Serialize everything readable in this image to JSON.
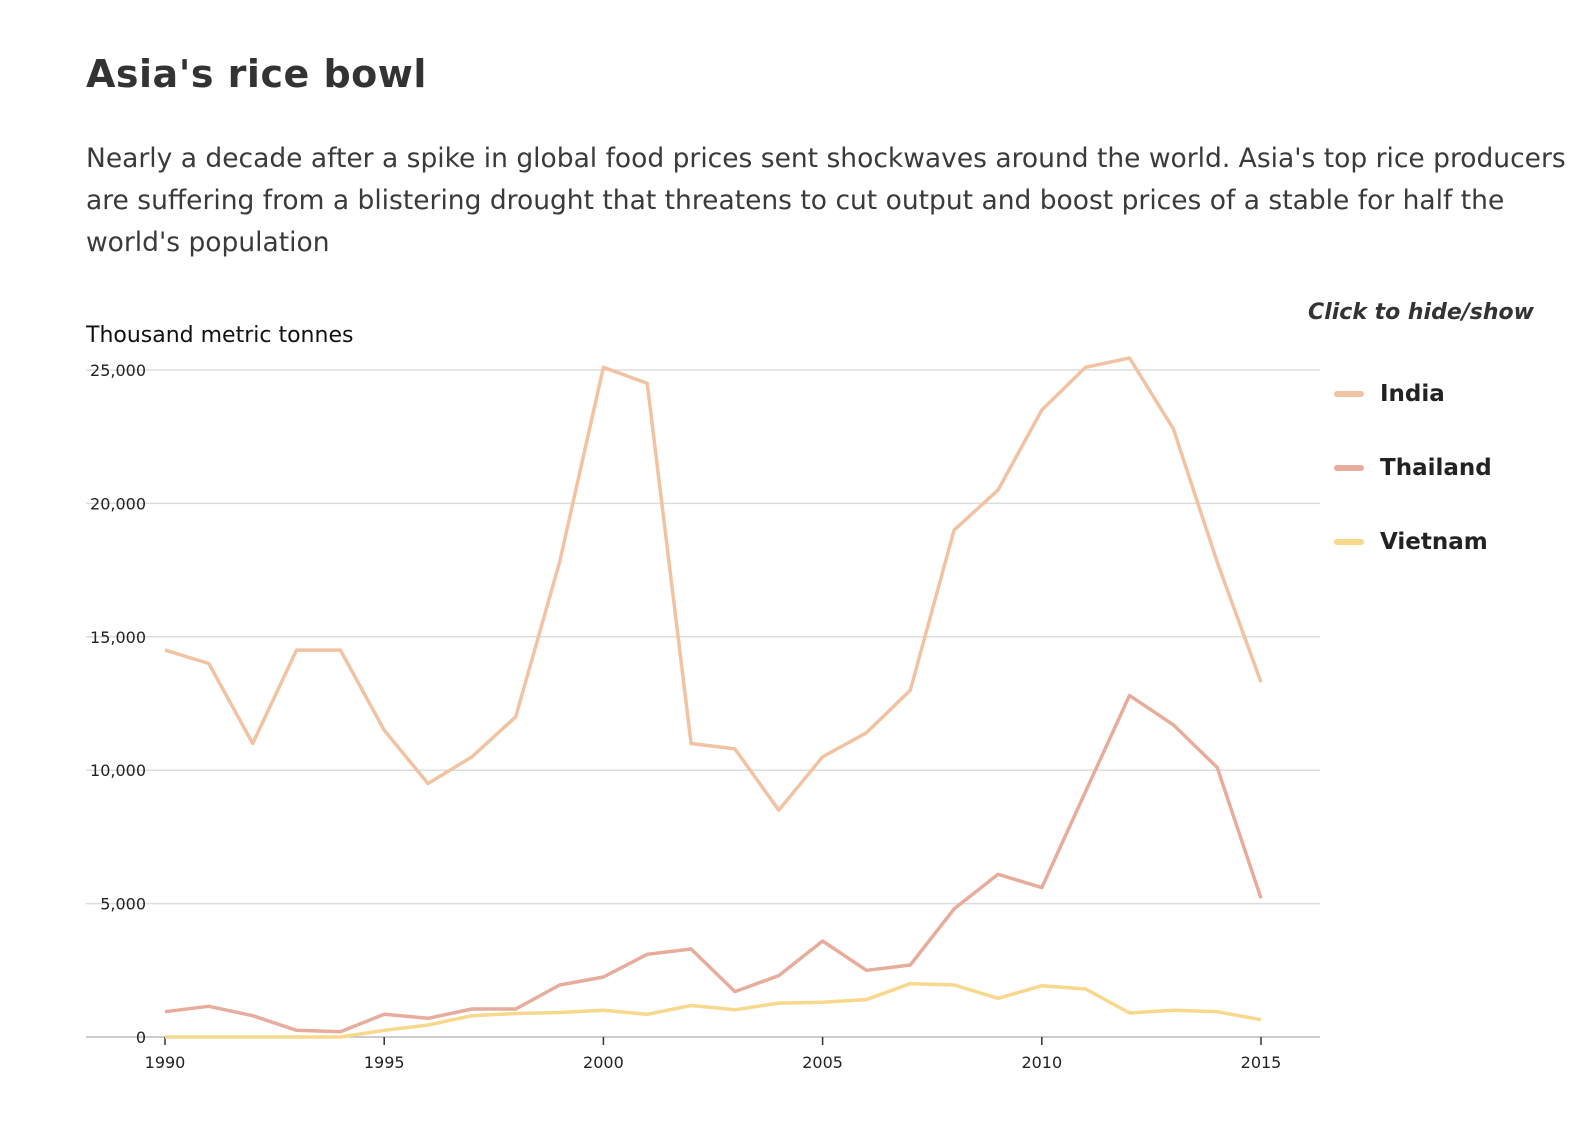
{
  "header": {
    "title": "Asia's rice bowl",
    "subtitle": "Nearly a decade after a spike in global food prices sent shockwaves around the world. Asia's top rice producers are suffering from a blistering drought that threatens to cut output and boost prices of a stable for half the world's population"
  },
  "legend": {
    "hint": "Click to hide/show"
  },
  "chart_data": {
    "type": "line",
    "ylabel": "Thousand metric tonnes",
    "xlabel": "",
    "xlim": [
      1990,
      2015
    ],
    "ylim": [
      0,
      25000
    ],
    "x_ticks": [
      1990,
      1995,
      2000,
      2005,
      2010,
      2015
    ],
    "y_ticks": [
      0,
      5000,
      10000,
      15000,
      20000,
      25000
    ],
    "y_tick_labels": [
      "0",
      "5,000",
      "10,000",
      "15,000",
      "20,000",
      "25,000"
    ],
    "grid": "horizontal",
    "legend_position": "right",
    "x": [
      1990,
      1991,
      1992,
      1993,
      1994,
      1995,
      1996,
      1997,
      1998,
      1999,
      2000,
      2001,
      2002,
      2003,
      2004,
      2005,
      2006,
      2007,
      2008,
      2009,
      2010,
      2011,
      2012,
      2013,
      2014,
      2015
    ],
    "series": [
      {
        "name": "India",
        "color": "#f1c3a2",
        "values": [
          14500,
          14000,
          11000,
          14500,
          14500,
          11500,
          9500,
          10500,
          12000,
          17800,
          25100,
          24500,
          11000,
          10800,
          8500,
          10500,
          11400,
          13000,
          19000,
          20500,
          23500,
          25100,
          25450,
          22800,
          17800,
          13300
        ]
      },
      {
        "name": "Thailand",
        "color": "#e8ac9c",
        "values": [
          950,
          1150,
          800,
          250,
          200,
          850,
          700,
          1050,
          1050,
          1950,
          2250,
          3100,
          3300,
          1700,
          2300,
          3600,
          2500,
          2700,
          4800,
          6100,
          5600,
          9200,
          12800,
          11700,
          10100,
          5200
        ]
      },
      {
        "name": "Vietnam",
        "color": "#f7d88c",
        "values": [
          0,
          0,
          0,
          0,
          0,
          250,
          450,
          800,
          880,
          920,
          1000,
          850,
          1180,
          1020,
          1270,
          1300,
          1400,
          2000,
          1950,
          1450,
          1920,
          1800,
          900,
          1000,
          950,
          650
        ]
      }
    ]
  }
}
